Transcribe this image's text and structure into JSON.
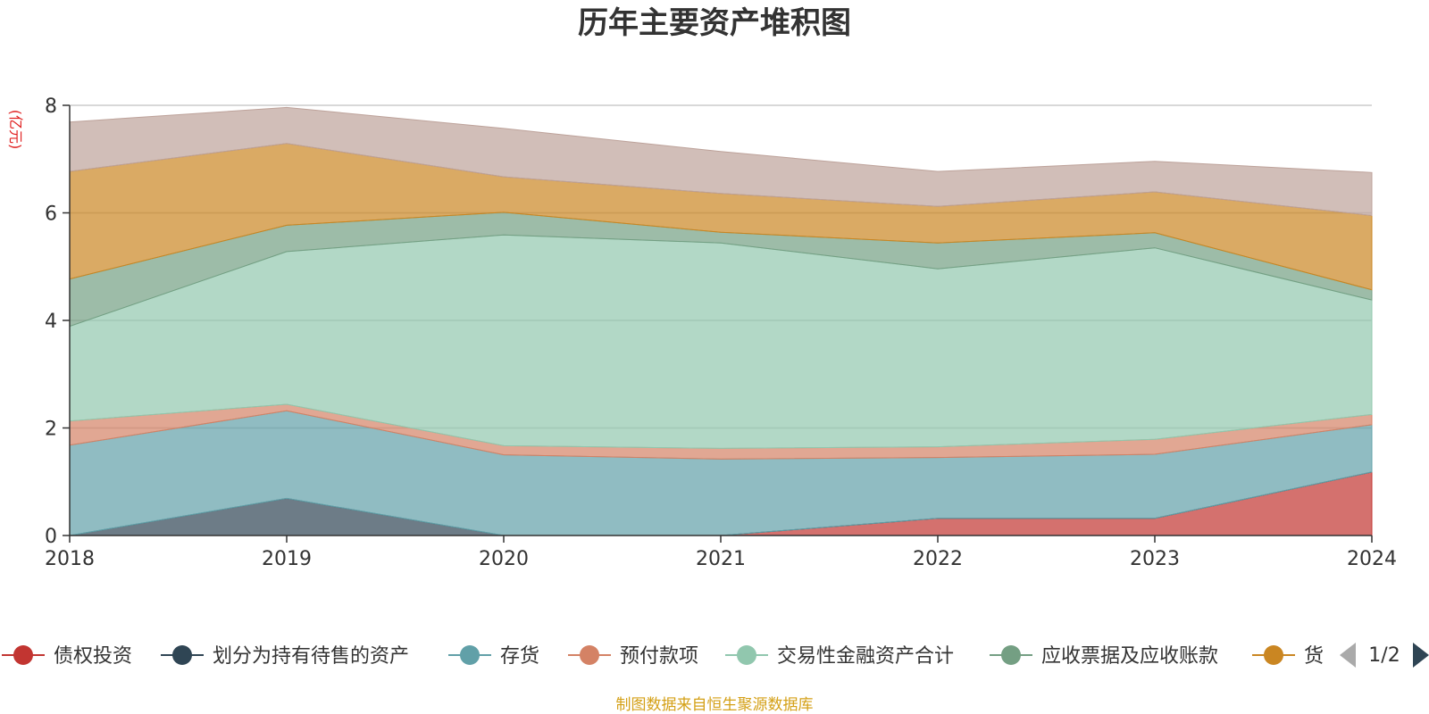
{
  "title": "历年主要资产堆积图",
  "unit_label": "亿元",
  "source": "制图数据来自恒生聚源数据库",
  "legend_pager": "1/2",
  "legend_visible": [
    {
      "name": "债权投资",
      "color": "#c23531"
    },
    {
      "name": "划分为持有待售的资产",
      "color": "#2f4554"
    },
    {
      "name": "存货",
      "color": "#61a0a8"
    },
    {
      "name": "预付款项",
      "color": "#d48265"
    },
    {
      "name": "交易性金融资产合计",
      "color": "#91c7ae"
    },
    {
      "name": "应收票据及应收账款",
      "color": "#749f83"
    },
    {
      "name": "货",
      "color": "#ca8622"
    }
  ],
  "chart_data": {
    "type": "area",
    "stacked": true,
    "x": [
      "2018",
      "2019",
      "2020",
      "2021",
      "2022",
      "2023",
      "2024"
    ],
    "ylim": [
      0,
      8
    ],
    "yticks": [
      0,
      2,
      4,
      6,
      8
    ],
    "grid": true,
    "legend_position": "bottom",
    "series": [
      {
        "name": "债权投资",
        "color": "#c23531",
        "values": [
          0,
          0,
          0,
          0,
          0.32,
          0.32,
          1.18
        ]
      },
      {
        "name": "划分为持有待售的资产",
        "color": "#2f4554",
        "values": [
          0,
          0.69,
          0,
          0,
          0,
          0,
          0
        ]
      },
      {
        "name": "存货",
        "color": "#61a0a8",
        "values": [
          1.68,
          1.63,
          1.5,
          1.42,
          1.13,
          1.19,
          0.88
        ]
      },
      {
        "name": "预付款项",
        "color": "#d48265",
        "values": [
          0.45,
          0.12,
          0.17,
          0.2,
          0.2,
          0.28,
          0.19
        ]
      },
      {
        "name": "交易性金融资产合计",
        "color": "#91c7ae",
        "values": [
          1.76,
          2.84,
          3.92,
          3.82,
          3.31,
          3.56,
          2.13
        ]
      },
      {
        "name": "应收票据及应收账款",
        "color": "#749f83",
        "values": [
          0.88,
          0.49,
          0.42,
          0.2,
          0.48,
          0.28,
          0.19
        ]
      },
      {
        "name": "货",
        "color": "#ca8622",
        "values": [
          2.0,
          1.52,
          0.66,
          0.72,
          0.68,
          0.76,
          1.38
        ]
      },
      {
        "name": "",
        "color": "#bda29a",
        "values": [
          0.92,
          0.67,
          0.9,
          0.78,
          0.65,
          0.57,
          0.8
        ]
      }
    ]
  }
}
